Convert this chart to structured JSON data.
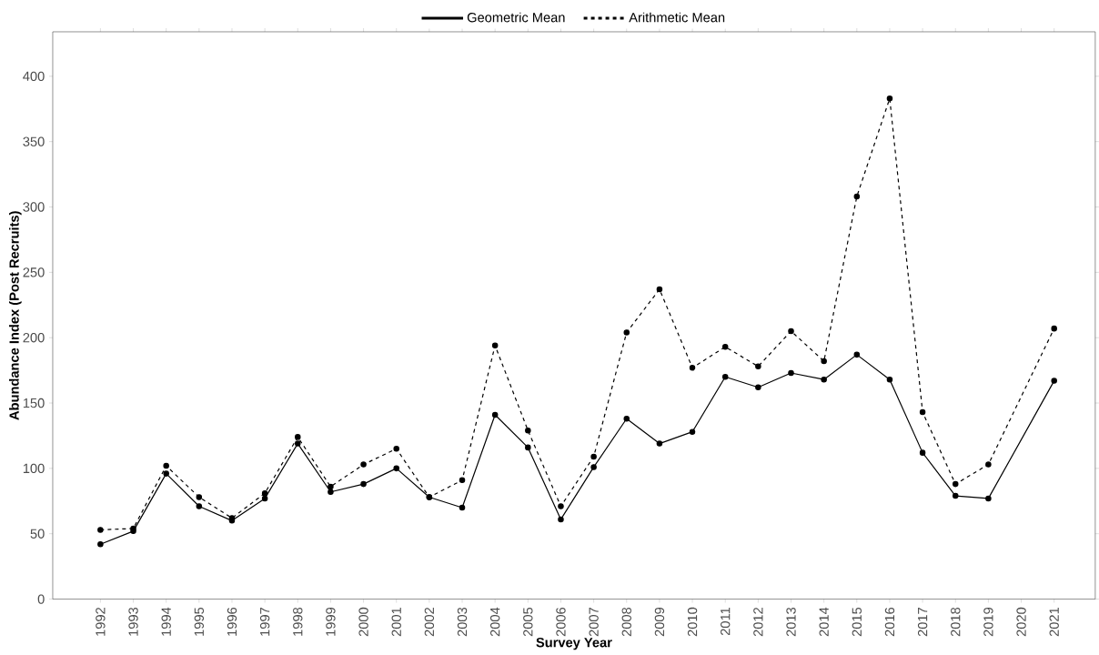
{
  "chart_data": {
    "type": "line",
    "xlabel": "Survey Year",
    "ylabel": "Abundance Index (Post Recruits)",
    "categories": [
      "1992",
      "1993",
      "1994",
      "1995",
      "1996",
      "1997",
      "1998",
      "1999",
      "2000",
      "2001",
      "2002",
      "2003",
      "2004",
      "2005",
      "2006",
      "2007",
      "2008",
      "2009",
      "2010",
      "2011",
      "2012",
      "2013",
      "2014",
      "2015",
      "2016",
      "2017",
      "2018",
      "2019",
      "2020",
      "2021"
    ],
    "series": [
      {
        "name": "Geometric Mean",
        "color": "#000000",
        "line_style": "solid",
        "values": [
          42,
          52,
          96,
          71,
          60,
          77,
          119,
          82,
          88,
          100,
          78,
          70,
          141,
          116,
          61,
          101,
          138,
          119,
          128,
          170,
          162,
          173,
          168,
          187,
          168,
          112,
          79,
          77,
          null,
          167
        ]
      },
      {
        "name": "Arithmetic Mean",
        "color": "#000000",
        "line_style": "dashed",
        "values": [
          53,
          54,
          102,
          78,
          62,
          81,
          124,
          86,
          103,
          115,
          78,
          91,
          194,
          129,
          71,
          109,
          204,
          237,
          177,
          193,
          178,
          205,
          182,
          308,
          383,
          143,
          88,
          103,
          null,
          207
        ]
      }
    ],
    "ylim": [
      0,
      434
    ],
    "yticks": [
      0,
      50,
      100,
      150,
      200,
      250,
      300,
      350,
      400
    ],
    "grid": false,
    "legend": "top",
    "marker": "circle"
  }
}
